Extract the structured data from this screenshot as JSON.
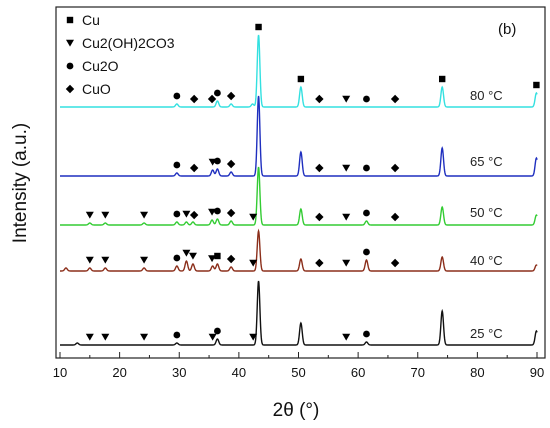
{
  "chart_data": {
    "type": "line",
    "panel_label": "(b)",
    "xlabel": "2θ (°)",
    "ylabel": "Intensity (a.u.)",
    "xlim": [
      10,
      90
    ],
    "xticks": [
      10,
      20,
      30,
      40,
      50,
      60,
      70,
      80,
      90
    ],
    "grid": false,
    "legend": {
      "position": "top-left",
      "entries": [
        {
          "marker": "square",
          "label": "Cu"
        },
        {
          "marker": "triangle-down",
          "label": "Cu2(OH)2CO3"
        },
        {
          "marker": "circle",
          "label": "Cu2O"
        },
        {
          "marker": "diamond",
          "label": "CuO"
        }
      ]
    },
    "series": [
      {
        "label": "80 °C",
        "color": "#33e0e0",
        "peaks": [
          {
            "x": 29.6,
            "h": 3
          },
          {
            "x": 36.4,
            "h": 6
          },
          {
            "x": 38.7,
            "h": 3
          },
          {
            "x": 42.3,
            "h": 3
          },
          {
            "x": 43.3,
            "h": 72
          },
          {
            "x": 50.4,
            "h": 20
          },
          {
            "x": 74.1,
            "h": 20
          },
          {
            "x": 89.9,
            "h": 14
          }
        ],
        "markers": [
          {
            "type": "circle",
            "x": 29.6
          },
          {
            "type": "diamond",
            "x": 32.5
          },
          {
            "type": "diamond",
            "x": 35.5
          },
          {
            "type": "circle",
            "x": 36.4
          },
          {
            "type": "diamond",
            "x": 38.7
          },
          {
            "type": "square",
            "x": 43.3
          },
          {
            "type": "square",
            "x": 50.4
          },
          {
            "type": "diamond",
            "x": 53.5
          },
          {
            "type": "triangle-down",
            "x": 58.0
          },
          {
            "type": "circle",
            "x": 61.4
          },
          {
            "type": "diamond",
            "x": 66.2
          },
          {
            "type": "square",
            "x": 74.1
          },
          {
            "type": "square",
            "x": 89.9
          }
        ]
      },
      {
        "label": "65 °C",
        "color": "#1f2fbf",
        "peaks": [
          {
            "x": 29.6,
            "h": 3
          },
          {
            "x": 35.6,
            "h": 6
          },
          {
            "x": 36.4,
            "h": 7
          },
          {
            "x": 38.7,
            "h": 4
          },
          {
            "x": 43.3,
            "h": 80
          },
          {
            "x": 50.4,
            "h": 24
          },
          {
            "x": 74.1,
            "h": 28
          },
          {
            "x": 89.9,
            "h": 18
          }
        ],
        "markers": [
          {
            "type": "circle",
            "x": 29.6
          },
          {
            "type": "diamond",
            "x": 32.5
          },
          {
            "type": "triangle-down",
            "x": 35.6
          },
          {
            "type": "circle",
            "x": 36.4
          },
          {
            "type": "diamond",
            "x": 38.7
          },
          {
            "type": "diamond",
            "x": 53.5
          },
          {
            "type": "triangle-down",
            "x": 58.0
          },
          {
            "type": "circle",
            "x": 61.4
          },
          {
            "type": "diamond",
            "x": 66.2
          }
        ]
      },
      {
        "label": "50 °C",
        "color": "#33cc33",
        "peaks": [
          {
            "x": 15.0,
            "h": 2
          },
          {
            "x": 17.6,
            "h": 2
          },
          {
            "x": 24.1,
            "h": 2
          },
          {
            "x": 29.6,
            "h": 3
          },
          {
            "x": 31.2,
            "h": 3
          },
          {
            "x": 32.3,
            "h": 3
          },
          {
            "x": 35.5,
            "h": 5
          },
          {
            "x": 36.4,
            "h": 6
          },
          {
            "x": 38.7,
            "h": 4
          },
          {
            "x": 43.3,
            "h": 58
          },
          {
            "x": 50.4,
            "h": 16
          },
          {
            "x": 61.4,
            "h": 4
          },
          {
            "x": 74.1,
            "h": 18
          },
          {
            "x": 89.9,
            "h": 10
          }
        ],
        "markers": [
          {
            "type": "triangle-down",
            "x": 15.0
          },
          {
            "type": "triangle-down",
            "x": 17.6
          },
          {
            "type": "triangle-down",
            "x": 24.1
          },
          {
            "type": "circle",
            "x": 29.6
          },
          {
            "type": "triangle-down",
            "x": 31.2
          },
          {
            "type": "diamond",
            "x": 32.5
          },
          {
            "type": "triangle-down",
            "x": 35.5
          },
          {
            "type": "circle",
            "x": 36.4
          },
          {
            "type": "diamond",
            "x": 38.7
          },
          {
            "type": "triangle-down",
            "x": 42.4
          },
          {
            "type": "diamond",
            "x": 53.5
          },
          {
            "type": "triangle-down",
            "x": 58.0
          },
          {
            "type": "circle",
            "x": 61.4
          },
          {
            "type": "diamond",
            "x": 66.2
          }
        ]
      },
      {
        "label": "40 °C",
        "color": "#8b2e1a",
        "peaks": [
          {
            "x": 11.0,
            "h": 3
          },
          {
            "x": 15.0,
            "h": 3
          },
          {
            "x": 17.6,
            "h": 3
          },
          {
            "x": 24.1,
            "h": 3
          },
          {
            "x": 29.6,
            "h": 5
          },
          {
            "x": 31.2,
            "h": 10
          },
          {
            "x": 32.3,
            "h": 7
          },
          {
            "x": 35.6,
            "h": 5
          },
          {
            "x": 36.4,
            "h": 7
          },
          {
            "x": 38.7,
            "h": 4
          },
          {
            "x": 43.3,
            "h": 40
          },
          {
            "x": 50.4,
            "h": 12
          },
          {
            "x": 61.4,
            "h": 11
          },
          {
            "x": 74.1,
            "h": 14
          },
          {
            "x": 89.9,
            "h": 6
          }
        ],
        "markers": [
          {
            "type": "triangle-down",
            "x": 15.0
          },
          {
            "type": "triangle-down",
            "x": 17.6
          },
          {
            "type": "triangle-down",
            "x": 24.1
          },
          {
            "type": "circle",
            "x": 29.6
          },
          {
            "type": "triangle-down",
            "x": 31.2
          },
          {
            "type": "triangle-down",
            "x": 32.3
          },
          {
            "type": "triangle-down",
            "x": 35.5
          },
          {
            "type": "square",
            "x": 36.4
          },
          {
            "type": "diamond",
            "x": 38.7
          },
          {
            "type": "triangle-down",
            "x": 42.4
          },
          {
            "type": "diamond",
            "x": 53.5
          },
          {
            "type": "triangle-down",
            "x": 58.0
          },
          {
            "type": "circle",
            "x": 61.4
          },
          {
            "type": "diamond",
            "x": 66.2
          }
        ]
      },
      {
        "label": "25 °C",
        "color": "#111111",
        "peaks": [
          {
            "x": 12.9,
            "h": 2
          },
          {
            "x": 29.6,
            "h": 2
          },
          {
            "x": 36.4,
            "h": 6
          },
          {
            "x": 43.3,
            "h": 64
          },
          {
            "x": 50.4,
            "h": 22
          },
          {
            "x": 61.4,
            "h": 3
          },
          {
            "x": 74.1,
            "h": 34
          },
          {
            "x": 89.9,
            "h": 14
          }
        ],
        "markers": [
          {
            "type": "triangle-down",
            "x": 15.0
          },
          {
            "type": "triangle-down",
            "x": 17.6
          },
          {
            "type": "triangle-down",
            "x": 24.1
          },
          {
            "type": "circle",
            "x": 29.6
          },
          {
            "type": "triangle-down",
            "x": 35.6
          },
          {
            "type": "circle",
            "x": 36.4
          },
          {
            "type": "triangle-down",
            "x": 42.4
          },
          {
            "type": "triangle-down",
            "x": 58.0
          },
          {
            "type": "circle",
            "x": 61.4
          }
        ]
      }
    ]
  }
}
